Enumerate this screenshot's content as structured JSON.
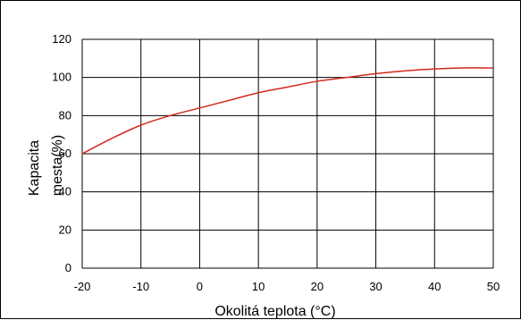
{
  "chart_data": {
    "type": "line",
    "title": "",
    "xlabel": "Okolitá teplota (°C)",
    "ylabel_lines": [
      "Kapacita",
      "mesta(%)"
    ],
    "xlim": [
      -20,
      50
    ],
    "ylim": [
      0,
      120
    ],
    "x_ticks": [
      -20,
      -10,
      0,
      10,
      20,
      30,
      40,
      50
    ],
    "y_ticks": [
      0,
      20,
      40,
      60,
      80,
      100,
      120
    ],
    "x_tick_labels": [
      "-20",
      "-10",
      "0",
      "10",
      "20",
      "30",
      "40",
      "50"
    ],
    "y_tick_labels": [
      "0",
      "20",
      "40",
      "60",
      "80",
      "100",
      "120"
    ],
    "grid": true,
    "legend": "none",
    "series": [
      {
        "color": "#d42a1c",
        "x": [
          -20,
          -15,
          -10,
          -5,
          0,
          5,
          10,
          15,
          20,
          25,
          30,
          35,
          40,
          45,
          50
        ],
        "y": [
          60,
          68,
          75,
          80,
          84,
          88,
          92,
          95,
          98,
          100,
          102,
          103.5,
          104.5,
          105,
          105
        ]
      }
    ]
  }
}
